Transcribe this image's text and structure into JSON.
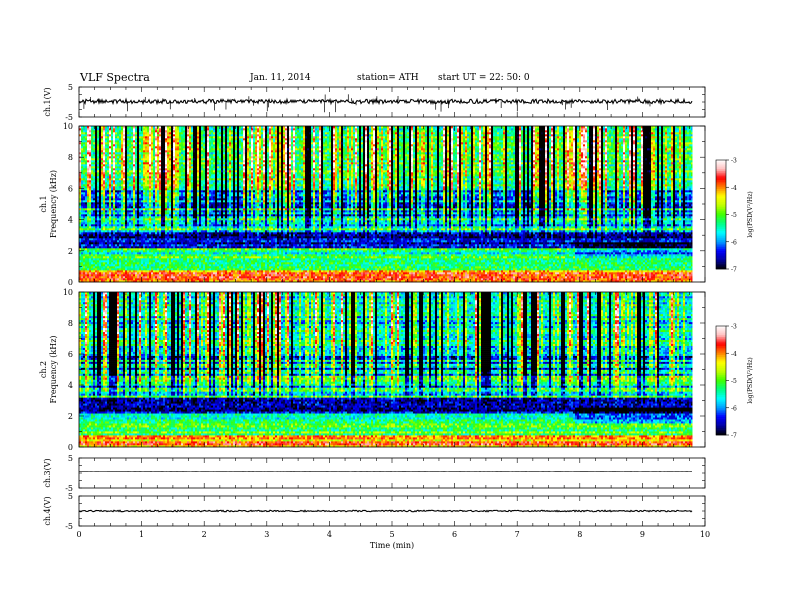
{
  "header": {
    "title": "VLF  Spectra",
    "date": "Jan. 11, 2014",
    "station": "station= ATH",
    "start": "start  UT  =   22: 50: 0"
  },
  "chart_data": {
    "type": "heatmap",
    "time_axis": {
      "label": "Time  (min)",
      "range": [
        0,
        10
      ],
      "ticks": [
        "0",
        "1",
        "2",
        "3",
        "4",
        "5",
        "6",
        "7",
        "8",
        "9",
        "10"
      ],
      "data_end_min": 9.8
    },
    "panels": [
      {
        "id": "ch1-waveform",
        "kind": "line",
        "ylabel": "ch.1(V)",
        "ylim": [
          -5,
          5
        ],
        "yticks": [
          "5",
          "-5"
        ],
        "baseline": 0.2,
        "noise_amplitude": 0.7,
        "spike_count": 36
      },
      {
        "id": "ch1-spectrogram",
        "kind": "heatmap",
        "ylabel_top": "ch.1",
        "ylabel": "Frequency  (kHz)",
        "ylim": [
          0,
          10
        ],
        "yticks": [
          "0",
          "2",
          "4",
          "6",
          "8",
          "10"
        ],
        "background_level": -5.2,
        "band_change_min": 7.9,
        "colorbar": {
          "label": "log(PSD(V²/Hz)",
          "range": [
            -7,
            -3
          ],
          "ticks": [
            "-3",
            "-4",
            "-5",
            "-6",
            "-7"
          ]
        }
      },
      {
        "id": "ch2-spectrogram",
        "kind": "heatmap",
        "ylabel_top": "ch.2",
        "ylabel": "Frequency  (kHz)",
        "ylim": [
          0,
          10
        ],
        "yticks": [
          "0",
          "2",
          "4",
          "6",
          "8",
          "10"
        ],
        "background_level": -5.6,
        "band_change_min": 7.9,
        "colorbar": {
          "label": "log(PSD(V²/Hz)",
          "range": [
            -7,
            -3
          ],
          "ticks": [
            "-3",
            "-4",
            "-5",
            "-6",
            "-7"
          ]
        }
      },
      {
        "id": "ch3-waveform",
        "kind": "line",
        "ylabel": "ch.3(V)",
        "ylim": [
          -5,
          5
        ],
        "yticks": [
          "5",
          "-5"
        ],
        "baseline": 0.5,
        "noise_amplitude": 0.03,
        "spike_count": 0
      },
      {
        "id": "ch4-waveform",
        "kind": "line",
        "ylabel": "ch.4(V)",
        "ylim": [
          -5,
          5
        ],
        "yticks": [
          "5",
          "-5"
        ],
        "baseline": 0,
        "noise_amplitude": 0.25,
        "spike_count": 0
      }
    ],
    "colormap": [
      "#000000",
      "#0000a0",
      "#0000ff",
      "#00a0ff",
      "#00ffff",
      "#00ff80",
      "#40ff00",
      "#c0ff00",
      "#ffff00",
      "#ff8000",
      "#ff0000",
      "#ffc0c0",
      "#ffffff"
    ]
  }
}
